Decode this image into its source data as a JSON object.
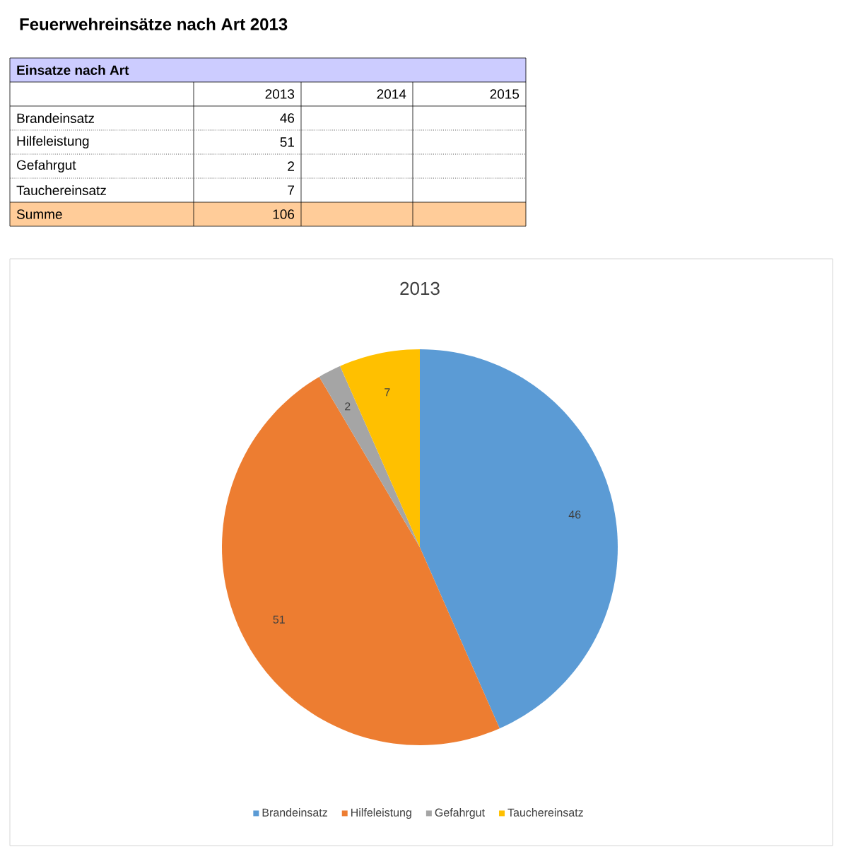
{
  "chart_data": {
    "type": "pie",
    "title": "2013",
    "categories": [
      "Brandeinsatz",
      "Hilfeleistung",
      "Gefahrgut",
      "Tauchereinsatz"
    ],
    "values": [
      46,
      51,
      2,
      7
    ],
    "colors": [
      "#5b9bd5",
      "#ed7d31",
      "#a5a5a5",
      "#ffc000"
    ],
    "data_labels": true,
    "legend": "bottom",
    "annotations": [
      "Feuerwehreinsätze nach Art 2013",
      "Einsatze nach Art",
      "2013",
      "2014",
      "2015",
      "Summe",
      "106",
      "46",
      "51",
      "2",
      "7"
    ]
  }
}
